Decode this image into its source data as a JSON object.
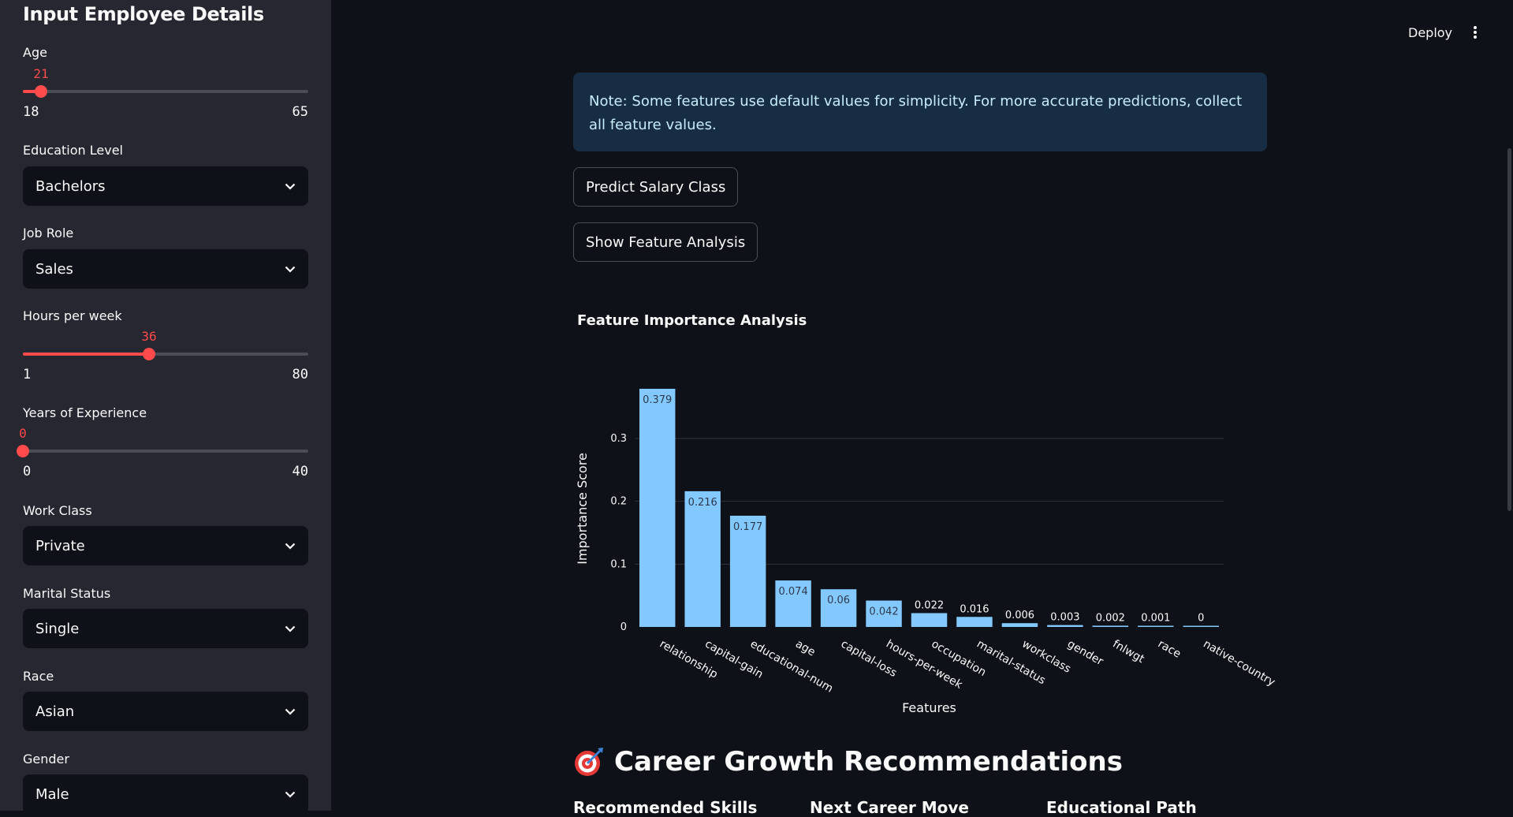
{
  "sidebar": {
    "title": "Input Employee Details",
    "age": {
      "label": "Age",
      "value": "21",
      "min": "18",
      "max": "65",
      "fraction": 0.064
    },
    "education": {
      "label": "Education Level",
      "value": "Bachelors"
    },
    "job_role": {
      "label": "Job Role",
      "value": "Sales"
    },
    "hours": {
      "label": "Hours per week",
      "value": "36",
      "min": "1",
      "max": "80",
      "fraction": 0.443
    },
    "experience": {
      "label": "Years of Experience",
      "value": "0",
      "min": "0",
      "max": "40",
      "fraction": 0.0
    },
    "work_class": {
      "label": "Work Class",
      "value": "Private"
    },
    "marital": {
      "label": "Marital Status",
      "value": "Single"
    },
    "race": {
      "label": "Race",
      "value": "Asian"
    },
    "gender": {
      "label": "Gender",
      "value": "Male"
    }
  },
  "header": {
    "deploy_label": "Deploy",
    "menu_icon": "kebab-menu-icon"
  },
  "main": {
    "note": "Note: Some features use default values for simplicity. For more accurate predictions, collect all feature values.",
    "predict_button": "Predict Salary Class",
    "analysis_button": "Show Feature Analysis",
    "chart_heading": "Feature Importance Analysis",
    "career_heading": "Career Growth Recommendations",
    "career_icon": "target-icon",
    "columns": [
      "Recommended Skills",
      "Next Career Move",
      "Educational Path"
    ]
  },
  "colors": {
    "accent": "#ff4b4b",
    "bar": "#83c9ff",
    "note_bg": "#172d43"
  },
  "chart_data": {
    "type": "bar",
    "categories": [
      "relationship",
      "capital-gain",
      "educational-num",
      "age",
      "capital-loss",
      "hours-per-week",
      "occupation",
      "marital-status",
      "workclass",
      "gender",
      "fnlwgt",
      "race",
      "native-country"
    ],
    "values": [
      0.379,
      0.216,
      0.177,
      0.074,
      0.06,
      0.042,
      0.022,
      0.016,
      0.006,
      0.003,
      0.002,
      0.001,
      0
    ],
    "labels": [
      "0.379",
      "0.216",
      "0.177",
      "0.074",
      "0.06",
      "0.042",
      "0.022",
      "0.016",
      "0.006",
      "0.003",
      "0.002",
      "0.001",
      "0"
    ],
    "xlabel": "Features",
    "ylabel": "Importance Score",
    "ylim": [
      0,
      0.379
    ],
    "yticks": [
      0,
      0.1,
      0.2,
      0.3
    ],
    "ytick_labels": [
      "0",
      "0.1",
      "0.2",
      "0.3"
    ],
    "grid": true
  }
}
